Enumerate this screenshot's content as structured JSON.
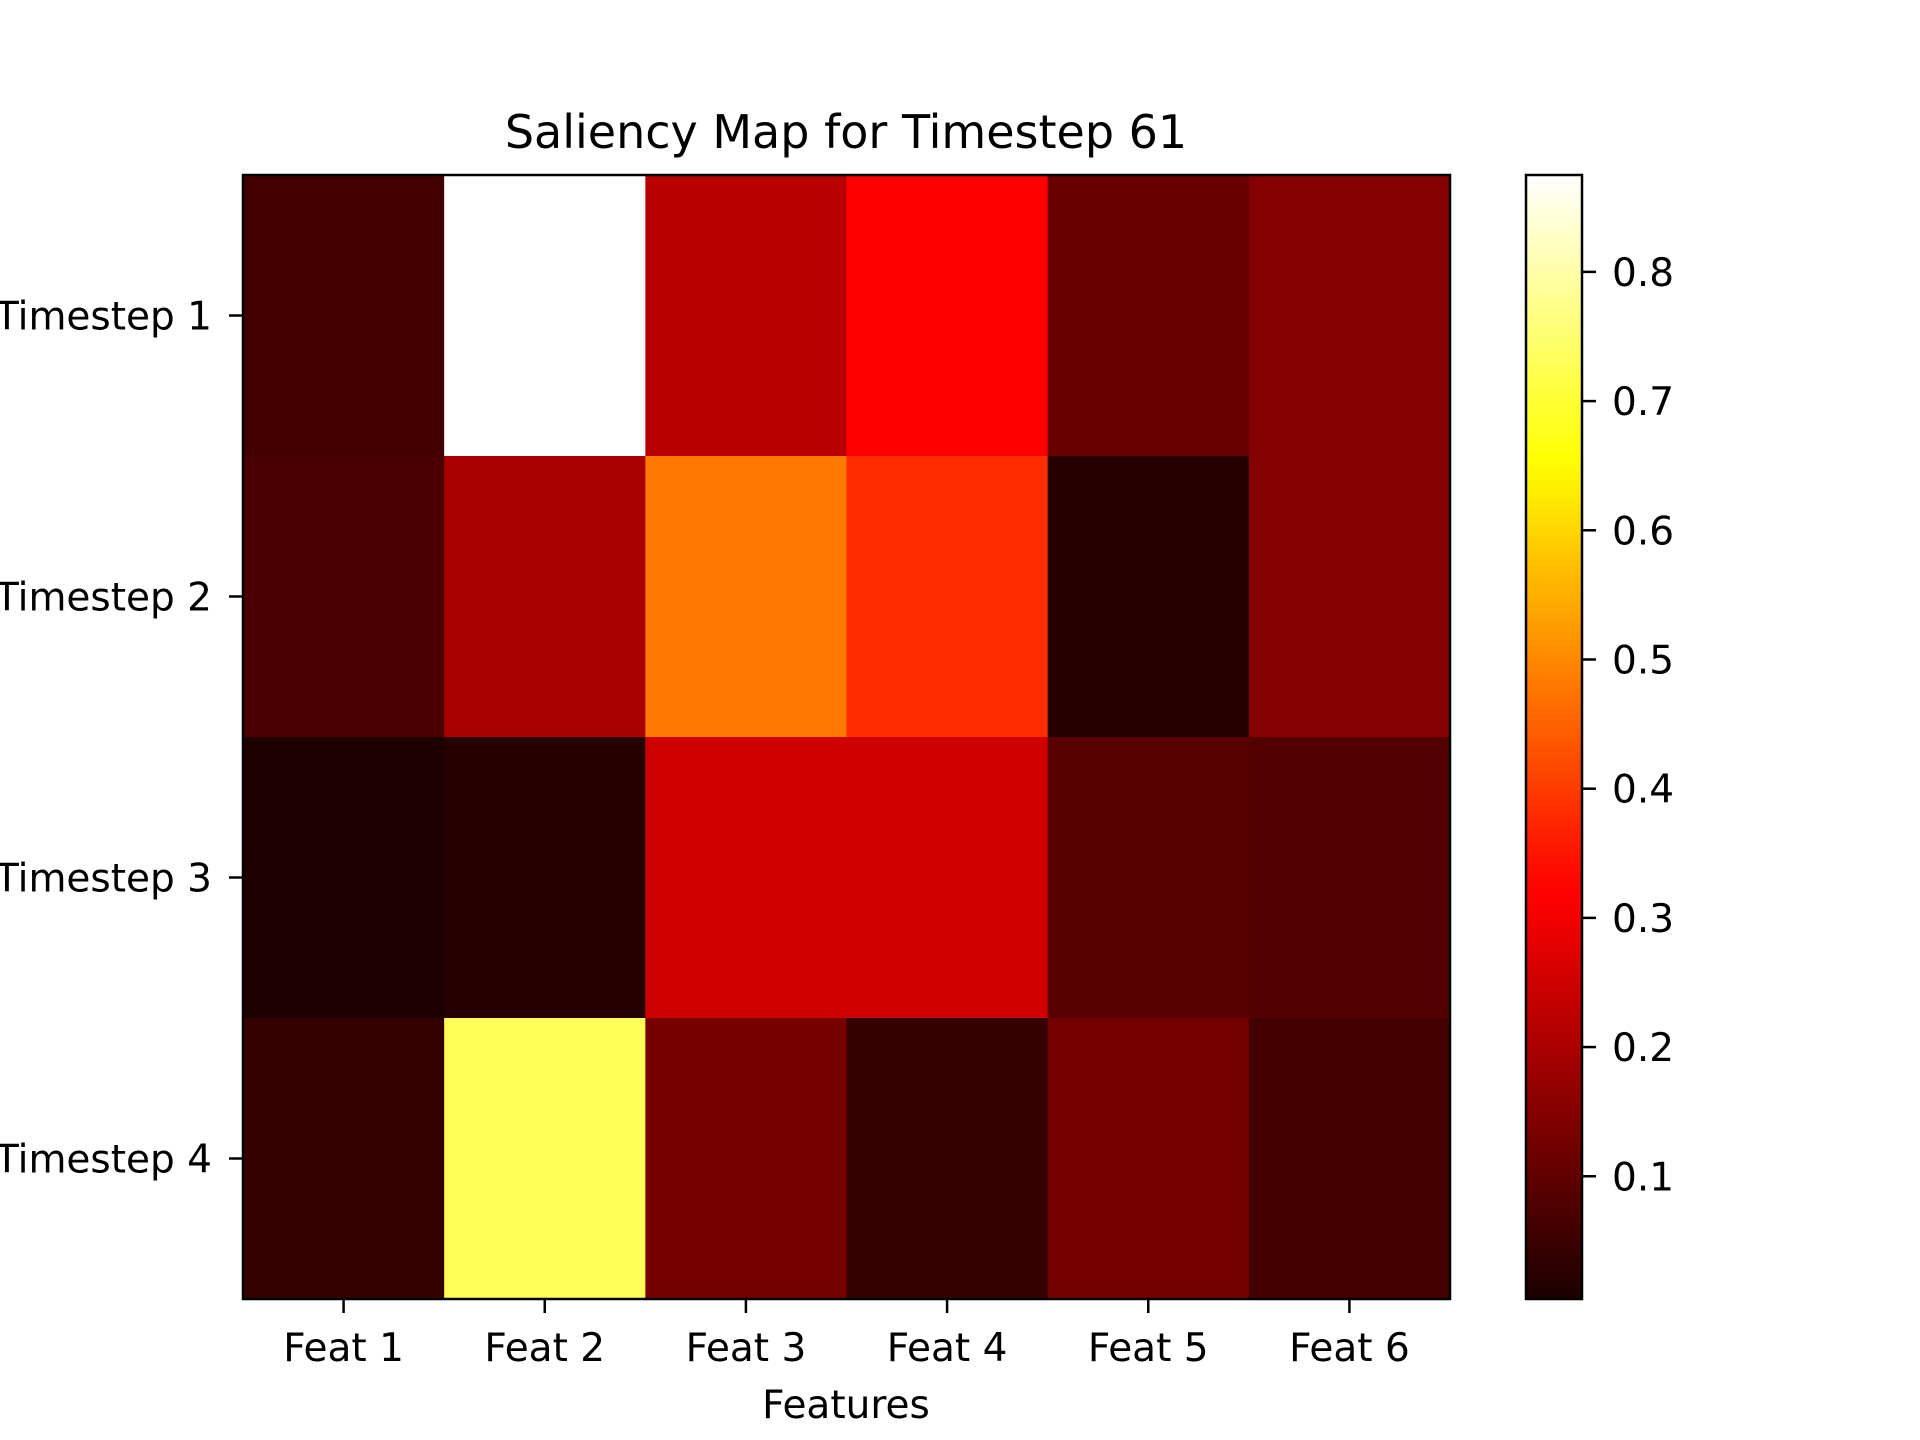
{
  "chart_data": {
    "type": "heatmap",
    "title": "Saliency Map for Timestep 61",
    "xlabel": "Features",
    "ylabel": "",
    "x_categories": [
      "Feat 1",
      "Feat 2",
      "Feat 3",
      "Feat 4",
      "Feat 5",
      "Feat 6"
    ],
    "y_categories": [
      "Timestep 1",
      "Timestep 2",
      "Timestep 3",
      "Timestep 4"
    ],
    "values": [
      [
        0.06,
        0.88,
        0.22,
        0.32,
        0.11,
        0.15
      ],
      [
        0.07,
        0.2,
        0.48,
        0.38,
        0.02,
        0.15
      ],
      [
        0.01,
        0.02,
        0.25,
        0.25,
        0.09,
        0.08
      ],
      [
        0.04,
        0.73,
        0.13,
        0.04,
        0.13,
        0.06
      ]
    ],
    "colormap": "hot",
    "vmin": 0.005,
    "vmax": 0.875,
    "colorbar": {
      "ticks": [
        0.1,
        0.2,
        0.3,
        0.4,
        0.5,
        0.6,
        0.7,
        0.8
      ],
      "tick_labels": [
        "0.1",
        "0.2",
        "0.3",
        "0.4",
        "0.5",
        "0.6",
        "0.7",
        "0.8"
      ]
    },
    "grid": false
  }
}
